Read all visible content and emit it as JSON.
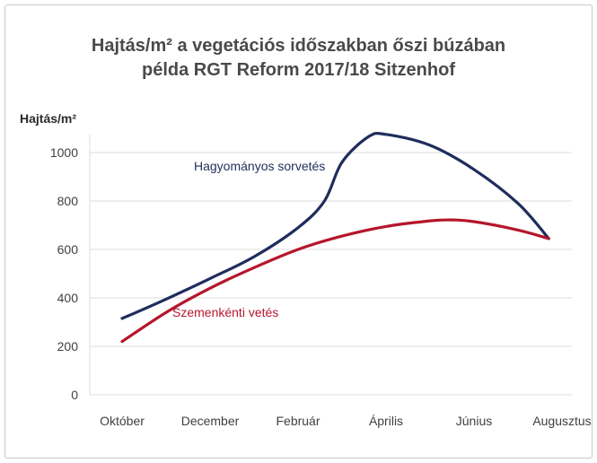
{
  "chart_data": {
    "type": "line",
    "title_line1": "Hajtás/m² a vegetációs időszakban őszi búzában",
    "title_line2": "példa RGT Reform 2017/18 Sitzenhof",
    "ylabel": "Hajtás/m²",
    "xlabel": "",
    "ylim": [
      0,
      1100
    ],
    "yticks": [
      0,
      200,
      400,
      600,
      800,
      1000
    ],
    "categories": [
      "Október",
      "December",
      "Február",
      "Április",
      "Június",
      "Augusztus"
    ],
    "grid": true,
    "series": [
      {
        "name": "Hagyományos sorvetés",
        "color": "#1f2d5c",
        "x": [
          0,
          0.5,
          1,
          1.5,
          2,
          2.3,
          2.5,
          2.8,
          3,
          3.5,
          4,
          4.5,
          4.85
        ],
        "y": [
          315,
          395,
          480,
          570,
          690,
          800,
          960,
          1065,
          1075,
          1030,
          930,
          790,
          645
        ]
      },
      {
        "name": "Szemenkénti vetés",
        "color": "#b5162b",
        "x": [
          0,
          0.5,
          1,
          1.5,
          2,
          2.5,
          3,
          3.5,
          3.75,
          4,
          4.5,
          4.85
        ],
        "y": [
          220,
          340,
          440,
          525,
          600,
          655,
          695,
          718,
          722,
          715,
          680,
          645
        ]
      }
    ]
  }
}
